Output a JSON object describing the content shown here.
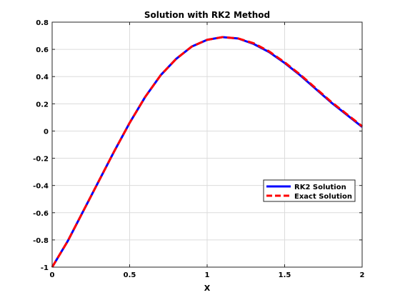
{
  "chart_data": {
    "type": "line",
    "title": "Solution with RK2 Method",
    "xlabel": "X",
    "ylabel": "",
    "xlim": [
      0,
      2
    ],
    "ylim": [
      -1,
      0.8
    ],
    "xticks": [
      0,
      0.5,
      1,
      1.5,
      2
    ],
    "xtick_labels": [
      "0",
      "0.5",
      "1",
      "1.5",
      "2"
    ],
    "yticks": [
      -1,
      -0.8,
      -0.6,
      -0.4,
      -0.2,
      0,
      0.2,
      0.4,
      0.6,
      0.8
    ],
    "ytick_labels": [
      "-1",
      "-0.8",
      "-0.6",
      "-0.4",
      "-0.2",
      "0",
      "0.2",
      "0.4",
      "0.6",
      "0.8"
    ],
    "grid": true,
    "legend_position": "right",
    "series": [
      {
        "name": "RK2 Solution",
        "color": "#0000ff",
        "style": "solid",
        "x": [
          0,
          0.1,
          0.2,
          0.3,
          0.4,
          0.5,
          0.6,
          0.7,
          0.8,
          0.9,
          1.0,
          1.1,
          1.2,
          1.3,
          1.4,
          1.5,
          1.6,
          1.7,
          1.8,
          1.9,
          2.0
        ],
        "y": [
          -1.0,
          -0.81,
          -0.59,
          -0.37,
          -0.15,
          0.06,
          0.25,
          0.41,
          0.53,
          0.62,
          0.67,
          0.69,
          0.68,
          0.64,
          0.58,
          0.5,
          0.41,
          0.31,
          0.21,
          0.12,
          0.03
        ]
      },
      {
        "name": "Exact Solution",
        "color": "#ff0000",
        "style": "dashed",
        "x": [
          0,
          0.1,
          0.2,
          0.3,
          0.4,
          0.5,
          0.6,
          0.7,
          0.8,
          0.9,
          1.0,
          1.1,
          1.2,
          1.3,
          1.4,
          1.5,
          1.6,
          1.7,
          1.8,
          1.9,
          2.0
        ],
        "y": [
          -1.0,
          -0.81,
          -0.59,
          -0.37,
          -0.15,
          0.06,
          0.25,
          0.41,
          0.53,
          0.62,
          0.67,
          0.69,
          0.68,
          0.645,
          0.585,
          0.505,
          0.415,
          0.315,
          0.215,
          0.125,
          0.035
        ]
      }
    ]
  }
}
